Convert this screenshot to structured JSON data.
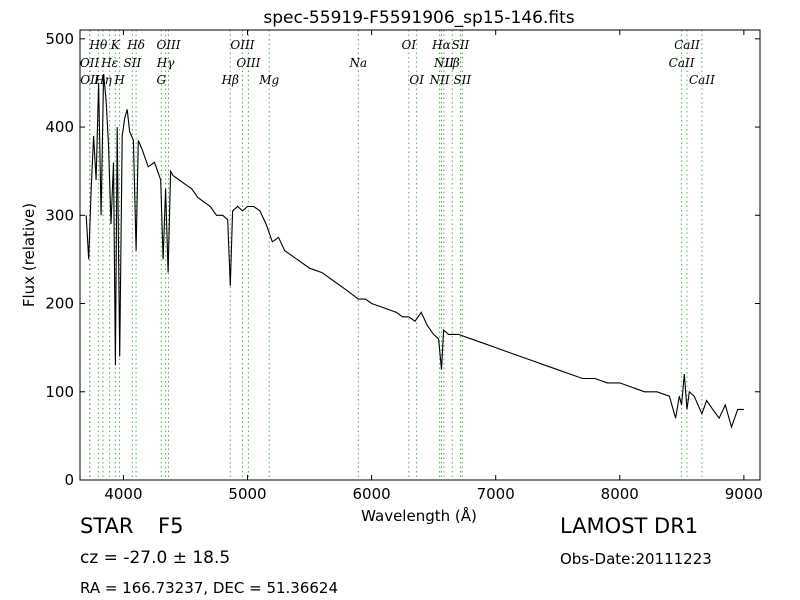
{
  "chart_data": {
    "type": "line",
    "title": "spec-55919-F5591906_sp15-146.fits",
    "xlabel": "Wavelength (Å)",
    "ylabel": "Flux (relative)",
    "xlim": [
      3650,
      9130
    ],
    "ylim": [
      0,
      510
    ],
    "xticks": [
      "4000",
      "5000",
      "6000",
      "7000",
      "8000",
      "9000"
    ],
    "yticks": [
      "0",
      "100",
      "200",
      "300",
      "400",
      "500"
    ],
    "grid": false,
    "line_color": "#000000",
    "marker_color": "#4daf4a",
    "series": [
      {
        "x": [
          3700,
          3720,
          3740,
          3760,
          3780,
          3800,
          3820,
          3840,
          3860,
          3880,
          3900,
          3920,
          3935,
          3950,
          3970,
          3990,
          4010,
          4030,
          4050,
          4080,
          4102,
          4120,
          4150,
          4200,
          4250,
          4300,
          4320,
          4340,
          4360,
          4380,
          4400,
          4450,
          4500,
          4550,
          4600,
          4650,
          4700,
          4750,
          4800,
          4840,
          4861,
          4880,
          4920,
          4960,
          5000,
          5050,
          5100,
          5150,
          5200,
          5250,
          5300,
          5400,
          5500,
          5600,
          5700,
          5800,
          5893,
          5950,
          6000,
          6100,
          6200,
          6250,
          6300,
          6350,
          6400,
          6450,
          6500,
          6540,
          6563,
          6580,
          6620,
          6700,
          6800,
          6900,
          7000,
          7100,
          7200,
          7300,
          7400,
          7500,
          7600,
          7700,
          7800,
          7900,
          8000,
          8100,
          8200,
          8300,
          8400,
          8450,
          8480,
          8498,
          8520,
          8542,
          8560,
          8600,
          8662,
          8700,
          8750,
          8800,
          8850,
          8900,
          8950,
          9000
        ],
        "y": [
          300,
          250,
          330,
          390,
          340,
          450,
          300,
          460,
          430,
          380,
          290,
          360,
          130,
          400,
          140,
          390,
          410,
          420,
          395,
          385,
          260,
          385,
          375,
          355,
          360,
          340,
          250,
          330,
          235,
          350,
          345,
          340,
          335,
          330,
          320,
          315,
          310,
          300,
          300,
          295,
          220,
          305,
          310,
          305,
          310,
          310,
          305,
          290,
          270,
          275,
          260,
          250,
          240,
          235,
          225,
          215,
          205,
          205,
          200,
          195,
          190,
          185,
          185,
          180,
          190,
          175,
          165,
          160,
          125,
          170,
          165,
          165,
          160,
          155,
          150,
          145,
          140,
          135,
          130,
          125,
          120,
          115,
          115,
          110,
          110,
          105,
          100,
          100,
          95,
          70,
          95,
          85,
          120,
          80,
          100,
          95,
          75,
          90,
          80,
          70,
          85,
          60,
          80,
          80
        ]
      }
    ],
    "lines_top": [
      {
        "label": "Hθ",
        "x": 3798
      },
      {
        "label": "K",
        "x": 3934
      },
      {
        "label": "Hδ",
        "x": 4102
      },
      {
        "label": "OIII",
        "x": 4363
      },
      {
        "label": "OIII",
        "x": 4959
      },
      {
        "label": "OI",
        "x": 6300
      },
      {
        "label": "Hα",
        "x": 6563
      },
      {
        "label": "SII",
        "x": 6716
      },
      {
        "label": "CaII",
        "x": 8542
      }
    ],
    "lines_mid": [
      {
        "label": "OII",
        "x": 3727
      },
      {
        "label": "Hε",
        "x": 3889
      },
      {
        "label": "SII",
        "x": 4072
      },
      {
        "label": "Hγ",
        "x": 4340
      },
      {
        "label": "OIII",
        "x": 5007
      },
      {
        "label": "Na",
        "x": 5893
      },
      {
        "label": "NII",
        "x": 6583
      },
      {
        "label": "Lβ",
        "x": 6650
      },
      {
        "label": "CaII",
        "x": 8498
      }
    ],
    "lines_low": [
      {
        "label": "OII",
        "x": 3730
      },
      {
        "label": "Hη",
        "x": 3835
      },
      {
        "label": "H",
        "x": 3969
      },
      {
        "label": "G",
        "x": 4305
      },
      {
        "label": "Hβ",
        "x": 4861
      },
      {
        "label": "Mg",
        "x": 5175
      },
      {
        "label": "OI",
        "x": 6363
      },
      {
        "label": "NII",
        "x": 6548
      },
      {
        "label": "SII",
        "x": 6731
      },
      {
        "label": "CaII",
        "x": 8662
      }
    ]
  },
  "info": {
    "object_class": "STAR",
    "subclass": "F5",
    "redshift": "cz = -27.0 ± 18.5",
    "coords": "RA = 166.73237, DEC = 51.36624",
    "survey": "LAMOST DR1",
    "obs_date": "Obs-Date:20111223"
  }
}
